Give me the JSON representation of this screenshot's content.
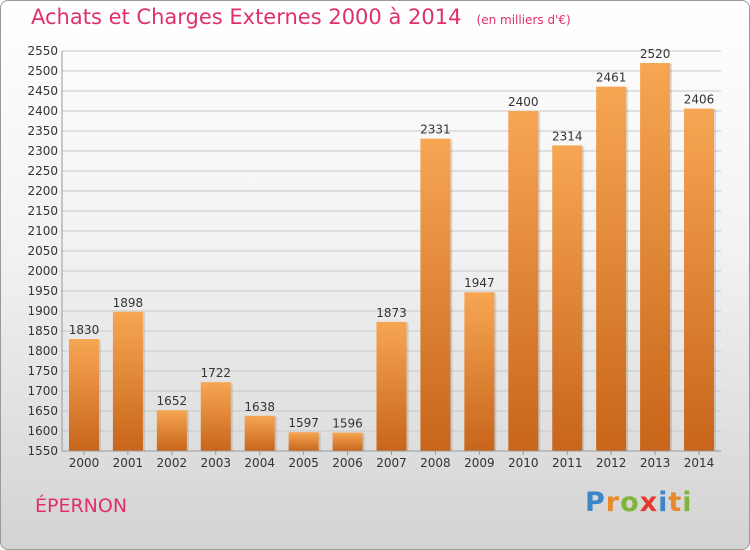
{
  "header": {
    "title": "Achats et Charges Externes 2000 à 2014",
    "unit": "(en milliers d'€)"
  },
  "footer": {
    "town": "ÉPERNON",
    "logo": {
      "text": "Proxiti",
      "letters": [
        {
          "char": "P",
          "color": "#3a86c8"
        },
        {
          "char": "r",
          "color": "#e8892b"
        },
        {
          "char": "o",
          "color": "#7fb539"
        },
        {
          "char": "x",
          "color": "#e63a2e"
        },
        {
          "char": "i",
          "color": "#3a86c8"
        },
        {
          "char": "t",
          "color": "#e8892b"
        },
        {
          "char": "i",
          "color": "#7fb539"
        }
      ]
    }
  },
  "chart_data": {
    "type": "bar",
    "title": "Achats et Charges Externes 2000 à 2014",
    "subtitle": "(en milliers d'€)",
    "categories": [
      "2000",
      "2001",
      "2002",
      "2003",
      "2004",
      "2005",
      "2006",
      "2007",
      "2008",
      "2009",
      "2010",
      "2011",
      "2012",
      "2013",
      "2014"
    ],
    "values": [
      1830,
      1898,
      1652,
      1722,
      1638,
      1597,
      1596,
      1873,
      2331,
      1947,
      2400,
      2314,
      2461,
      2520,
      2406
    ],
    "ylim": [
      1550,
      2550
    ],
    "yticks": [
      1550,
      1600,
      1650,
      1700,
      1750,
      1800,
      1850,
      1900,
      1950,
      2000,
      2050,
      2100,
      2150,
      2200,
      2250,
      2300,
      2350,
      2400,
      2450,
      2500,
      2550
    ],
    "grid": true,
    "bar_color_top": "#f7a653",
    "bar_color_bottom": "#c8651a",
    "xlabel": "",
    "ylabel": ""
  }
}
